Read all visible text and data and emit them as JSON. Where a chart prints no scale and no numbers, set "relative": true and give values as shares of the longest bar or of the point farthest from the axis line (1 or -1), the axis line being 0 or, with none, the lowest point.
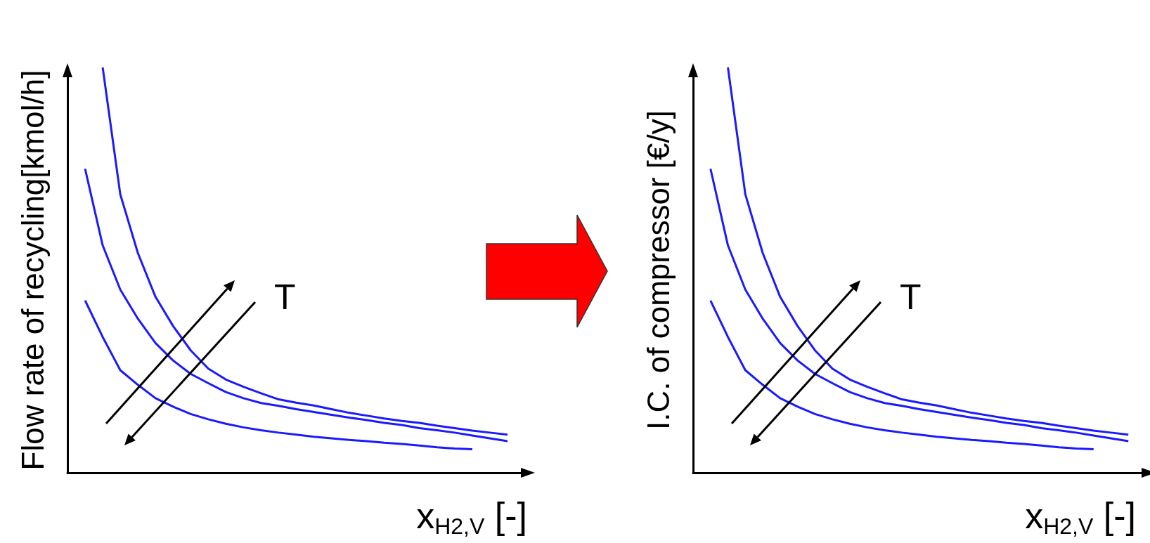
{
  "chart_data": [
    {
      "type": "line",
      "relative": true,
      "grid": false,
      "marker": "none",
      "xlabel": "x$_{H2,V}$ [-]",
      "ylabel": "Flow rate of recycling[kmol/h]",
      "annotations": [
        "T"
      ],
      "categories": [
        null,
        null,
        null,
        null,
        null,
        null,
        null,
        null,
        null,
        null,
        null,
        null,
        null,
        null,
        null,
        null,
        null,
        null,
        null,
        null,
        null,
        null,
        null,
        null,
        null,
        null,
        null
      ],
      "series": [
        {
          "color": "#1a1aff",
          "values": [
            null,
            null,
            1.0,
            0.687,
            0.542,
            0.434,
            0.362,
            0.302,
            0.257,
            0.23,
            0.212,
            0.196,
            0.181,
            0.173,
            0.166,
            0.157,
            0.148,
            0.141,
            0.134,
            0.128,
            0.123,
            0.116,
            0.11,
            0.104,
            0.099,
            0.094,
            null
          ]
        },
        {
          "color": "#1a1aff",
          "values": [
            null,
            0.75,
            0.561,
            0.452,
            0.38,
            0.32,
            0.277,
            0.244,
            0.221,
            0.199,
            0.184,
            0.172,
            0.165,
            0.157,
            0.15,
            0.143,
            0.136,
            0.13,
            0.123,
            0.118,
            0.11,
            0.105,
            0.099,
            0.092,
            0.085,
            0.078,
            null
          ]
        },
        {
          "color": "#1a1aff",
          "values": [
            null,
            0.425,
            0.335,
            0.253,
            0.217,
            0.184,
            0.163,
            0.145,
            0.132,
            0.121,
            0.112,
            0.105,
            0.099,
            0.094,
            0.089,
            0.085,
            0.081,
            0.078,
            0.074,
            0.071,
            0.067,
            0.063,
            0.06,
            0.058,
            null,
            null,
            null
          ]
        }
      ]
    },
    {
      "type": "line",
      "relative": true,
      "grid": false,
      "marker": "none",
      "xlabel": "x$_{H2,V}$ [-]",
      "ylabel": "I.C. of compressor [€/y]",
      "annotations": [
        "T"
      ],
      "categories": [
        null,
        null,
        null,
        null,
        null,
        null,
        null,
        null,
        null,
        null,
        null,
        null,
        null,
        null,
        null,
        null,
        null,
        null,
        null,
        null,
        null,
        null,
        null,
        null,
        null,
        null,
        null
      ],
      "series": [
        {
          "color": "#1a1aff",
          "values": [
            null,
            null,
            1.0,
            0.687,
            0.542,
            0.434,
            0.362,
            0.302,
            0.257,
            0.23,
            0.212,
            0.196,
            0.181,
            0.173,
            0.166,
            0.157,
            0.148,
            0.141,
            0.134,
            0.128,
            0.123,
            0.116,
            0.11,
            0.104,
            0.099,
            0.094,
            null
          ]
        },
        {
          "color": "#1a1aff",
          "values": [
            null,
            0.75,
            0.561,
            0.452,
            0.38,
            0.32,
            0.277,
            0.244,
            0.221,
            0.199,
            0.184,
            0.172,
            0.165,
            0.157,
            0.15,
            0.143,
            0.136,
            0.13,
            0.123,
            0.118,
            0.11,
            0.105,
            0.099,
            0.092,
            0.085,
            0.078,
            null
          ]
        },
        {
          "color": "#1a1aff",
          "values": [
            null,
            0.425,
            0.335,
            0.253,
            0.217,
            0.184,
            0.163,
            0.145,
            0.132,
            0.121,
            0.112,
            0.105,
            0.099,
            0.094,
            0.089,
            0.085,
            0.081,
            0.078,
            0.074,
            0.071,
            0.067,
            0.063,
            0.06,
            0.058,
            null,
            null,
            null
          ]
        }
      ]
    }
  ]
}
